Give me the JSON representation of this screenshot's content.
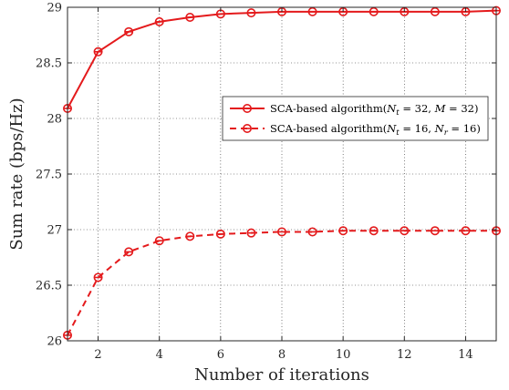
{
  "chart_data": {
    "type": "line",
    "xlabel": "Number of iterations",
    "ylabel": "Sum rate (bps/Hz)",
    "xlim": [
      1,
      15
    ],
    "ylim": [
      26,
      29
    ],
    "xticks": [
      2,
      4,
      6,
      8,
      10,
      12,
      14
    ],
    "xtick_labels": [
      "2",
      "4",
      "6",
      "8",
      "10",
      "12",
      "14"
    ],
    "yticks": [
      26,
      26.5,
      27,
      27.5,
      28,
      28.5,
      29
    ],
    "ytick_labels": [
      "26",
      "26.5",
      "27",
      "27.5",
      "28",
      "28.5",
      "29"
    ],
    "grid": true,
    "grid_style": "dotted",
    "legend_placement": "right-middle",
    "x": [
      1,
      2,
      3,
      4,
      5,
      6,
      7,
      8,
      9,
      10,
      11,
      12,
      13,
      14,
      15
    ],
    "series": [
      {
        "name": "SCA-based algorithm(N_t = 32, M = 32)",
        "legend_parts": [
          {
            "t": "SCA-based algorithm("
          },
          {
            "t": "N",
            "i": true
          },
          {
            "t": "t",
            "sub": true,
            "i": true
          },
          {
            "t": " = 32, "
          },
          {
            "t": "M",
            "i": true
          },
          {
            "t": " = 32)"
          }
        ],
        "color": "#e41a1c",
        "line_style": "solid",
        "marker": "circle",
        "values": [
          28.09,
          28.6,
          28.78,
          28.87,
          28.91,
          28.94,
          28.95,
          28.96,
          28.96,
          28.96,
          28.96,
          28.96,
          28.96,
          28.96,
          28.97
        ]
      },
      {
        "name": "SCA-based algorithm(N_t = 16, N_r = 16)",
        "legend_parts": [
          {
            "t": "SCA-based algorithm("
          },
          {
            "t": "N",
            "i": true
          },
          {
            "t": "t",
            "sub": true,
            "i": true
          },
          {
            "t": " = 16, "
          },
          {
            "t": "N",
            "i": true
          },
          {
            "t": "r",
            "sub": true,
            "i": true
          },
          {
            "t": " = 16)"
          }
        ],
        "color": "#e41a1c",
        "line_style": "dashed",
        "marker": "circle",
        "values": [
          26.05,
          26.57,
          26.8,
          26.9,
          26.94,
          26.96,
          26.97,
          26.98,
          26.98,
          26.99,
          26.99,
          26.99,
          26.99,
          26.99,
          26.99
        ]
      }
    ]
  }
}
